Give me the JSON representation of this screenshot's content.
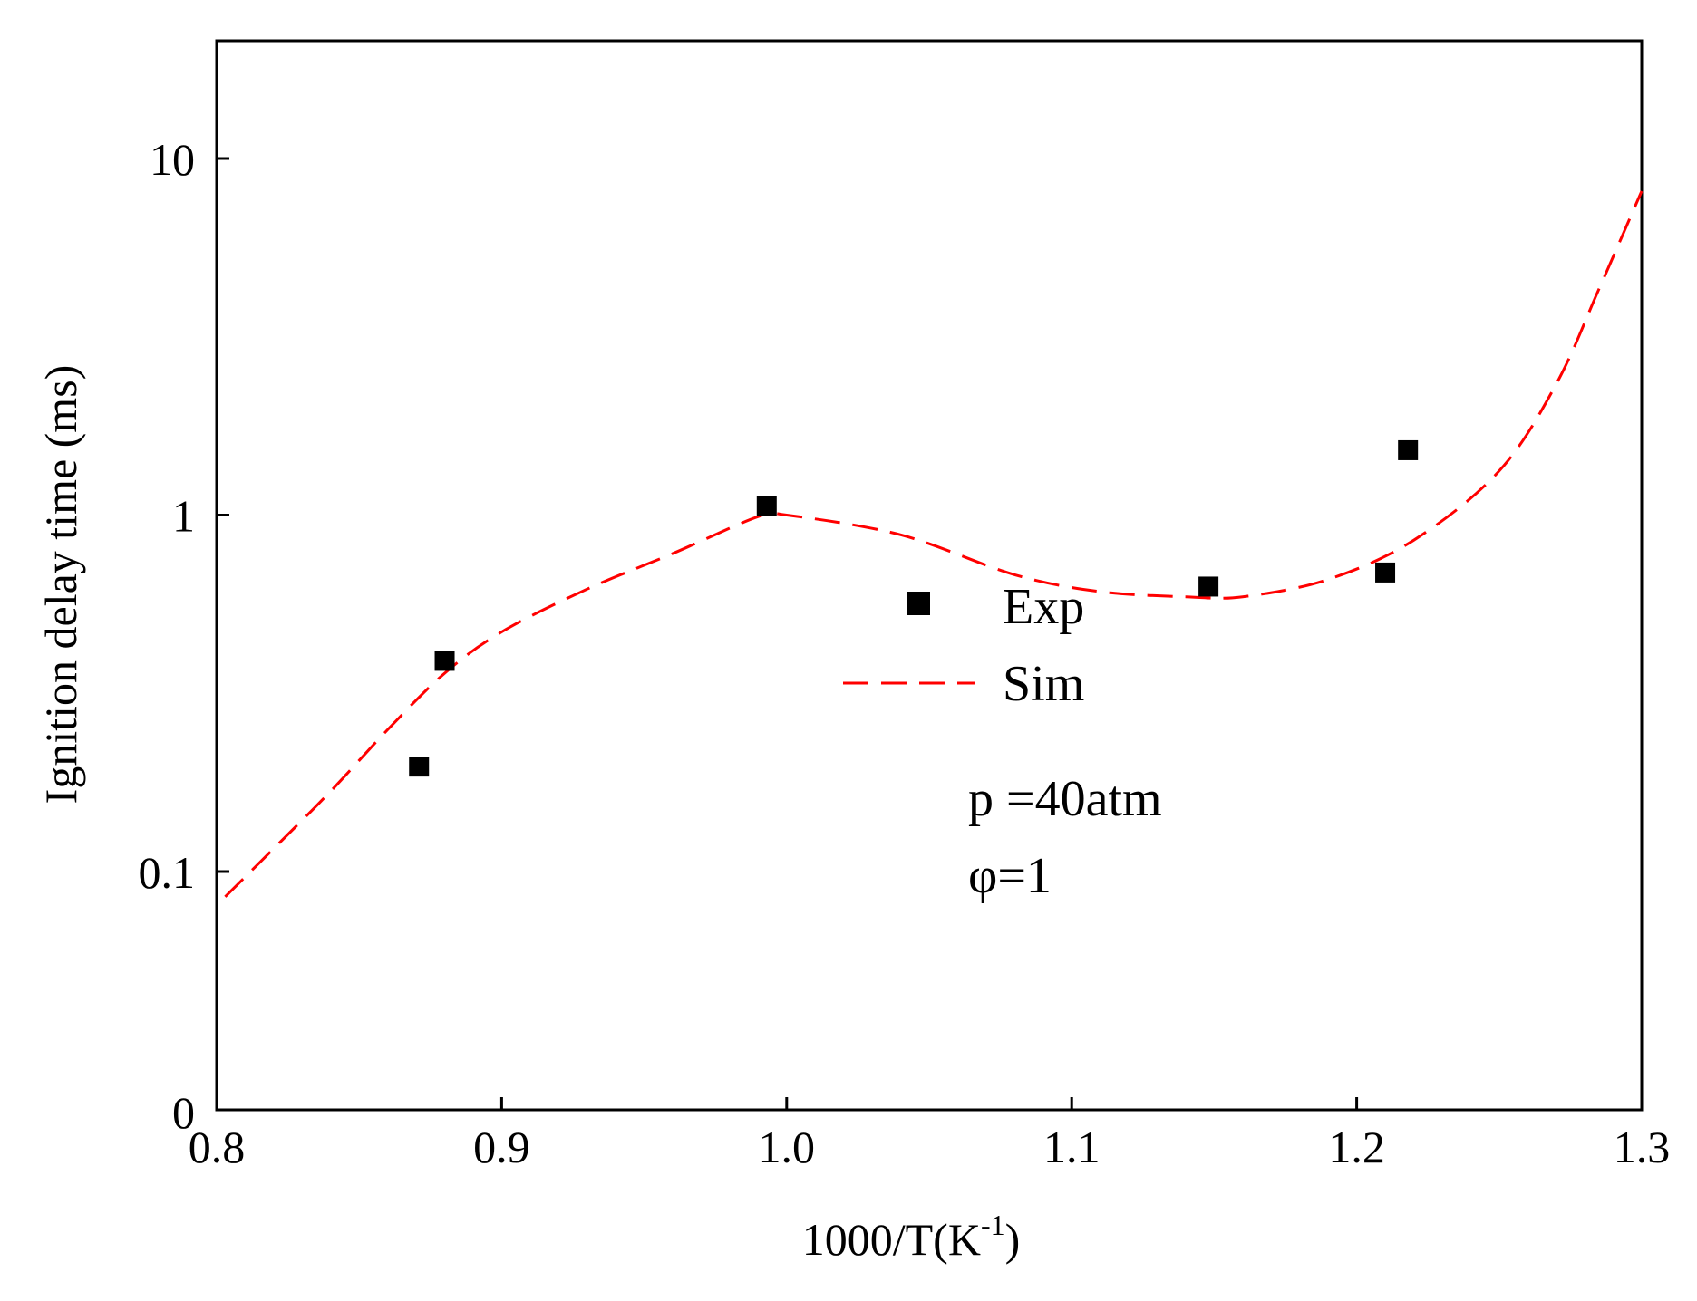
{
  "chart_data": {
    "type": "scatter",
    "title": "",
    "xlabel": "1000/T(K",
    "xlabel_sup": "-1",
    "xlabel_close": ")",
    "ylabel": "Ignition delay time (ms)",
    "xlim": [
      0.8,
      1.3
    ],
    "x_ticks": [
      0.8,
      0.9,
      1.0,
      1.1,
      1.2,
      1.3
    ],
    "x_tick_labels": [
      "0.8",
      "0.9",
      "1.0",
      "1.1",
      "1.2",
      "1.3"
    ],
    "y_scale": "log",
    "y_ticks": [
      0.1,
      1,
      10
    ],
    "y_tick_labels": [
      "0.1",
      "1",
      "10"
    ],
    "y_bottom_label": "0",
    "series": [
      {
        "name": "Exp",
        "kind": "scatter",
        "marker": "square",
        "color": "#000000",
        "x": [
          0.871,
          0.88,
          0.993,
          1.148,
          1.21,
          1.218
        ],
        "y": [
          0.197,
          0.39,
          1.06,
          0.63,
          0.69,
          1.52
        ]
      },
      {
        "name": "Sim",
        "kind": "line",
        "style": "dashed",
        "color": "#ff0000",
        "x": [
          0.803,
          0.82,
          0.84,
          0.86,
          0.88,
          0.9,
          0.93,
          0.96,
          0.99,
          1.0,
          1.04,
          1.08,
          1.11,
          1.14,
          1.16,
          1.19,
          1.22,
          1.25,
          1.27,
          1.285,
          1.3
        ],
        "y": [
          0.085,
          0.116,
          0.168,
          0.25,
          0.36,
          0.47,
          0.62,
          0.78,
          0.99,
          1.0,
          0.88,
          0.68,
          0.61,
          0.59,
          0.59,
          0.66,
          0.85,
          1.33,
          2.33,
          4.3,
          8.1
        ]
      }
    ],
    "legend_position": "center",
    "annotations": [
      "p =40atm",
      "φ=1"
    ]
  }
}
